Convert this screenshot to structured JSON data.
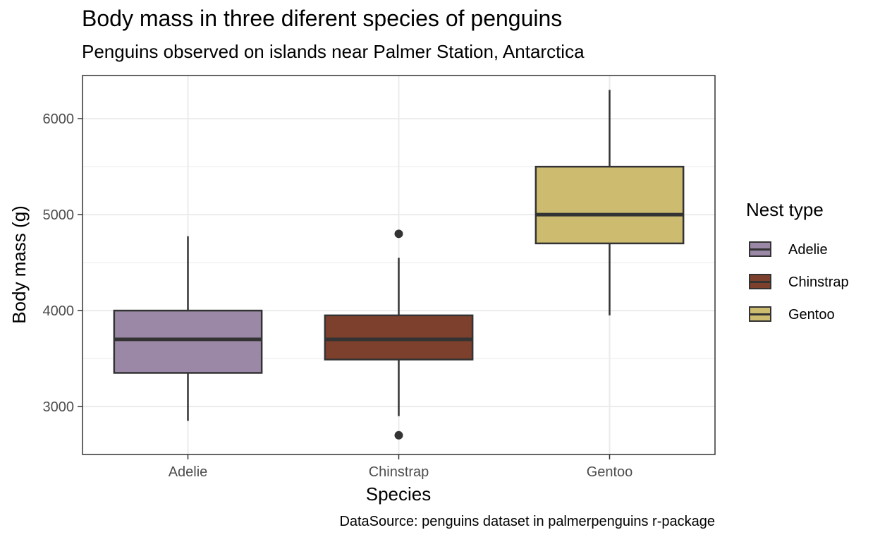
{
  "chart_data": {
    "type": "boxplot",
    "title": "Body mass in three diferent species of penguins",
    "subtitle": "Penguins observed on islands near Palmer Station, Antarctica",
    "caption": "DataSource: penguins dataset in palmerpenguins r-package",
    "xlabel": "Species",
    "ylabel": "Body mass (g)",
    "categories": [
      "Adelie",
      "Chinstrap",
      "Gentoo"
    ],
    "ylim": [
      2500,
      6450
    ],
    "yticks": [
      3000,
      4000,
      5000,
      6000
    ],
    "grid": true,
    "legend": {
      "title": "Nest type",
      "position": "right",
      "entries": [
        "Adelie",
        "Chinstrap",
        "Gentoo"
      ]
    },
    "series": [
      {
        "name": "Adelie",
        "color": "#9A88A6",
        "min": 2850,
        "q1": 3350,
        "median": 3700,
        "q3": 4000,
        "max": 4775,
        "outliers": []
      },
      {
        "name": "Chinstrap",
        "color": "#7D402D",
        "min": 2900,
        "q1": 3490,
        "median": 3700,
        "q3": 3950,
        "max": 4550,
        "outliers": [
          4800,
          2700
        ]
      },
      {
        "name": "Gentoo",
        "color": "#CDBB70",
        "min": 3950,
        "q1": 4700,
        "median": 5000,
        "q3": 5500,
        "max": 6300,
        "outliers": []
      }
    ]
  }
}
